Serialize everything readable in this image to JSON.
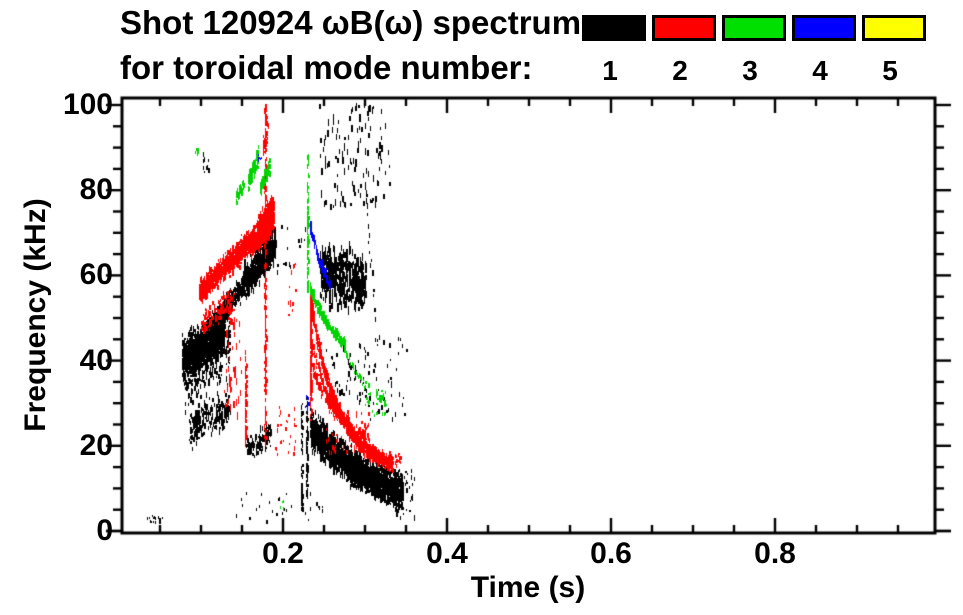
{
  "title": {
    "line1": "Shot 120924 ωB(ω) spectrum",
    "line2": "for toroidal mode number:"
  },
  "legend": {
    "entries": [
      {
        "label": "1",
        "color": "#000000"
      },
      {
        "label": "2",
        "color": "#ff0000"
      },
      {
        "label": "3",
        "color": "#00e000"
      },
      {
        "label": "4",
        "color": "#0000ff"
      },
      {
        "label": "5",
        "color": "#ffff00"
      }
    ]
  },
  "axes": {
    "x": {
      "title": "Time (s)",
      "major_ticks": [
        0.2,
        0.4,
        0.6,
        0.8
      ],
      "tick_labels": [
        "0.2",
        "0.4",
        "0.6",
        "0.8"
      ],
      "minor_step": 0.05,
      "range": [
        0.004,
        0.995
      ]
    },
    "y": {
      "title": "Frequency (kHz)",
      "major_ticks": [
        0,
        20,
        40,
        60,
        80,
        100
      ],
      "tick_labels": [
        "0",
        "20",
        "40",
        "60",
        "80",
        "100"
      ],
      "minor_step": 5,
      "range": [
        0,
        101.5
      ]
    }
  },
  "chart_data": {
    "type": "scatter",
    "title": "Shot 120924 ωB(ω) spectrum for toroidal mode number:",
    "xlabel": "Time (s)",
    "ylabel": "Frequency (kHz)",
    "xlim": [
      0,
      1.0
    ],
    "ylim": [
      0,
      100
    ],
    "grid": false,
    "legend_position": "top-right",
    "series": [
      {
        "name": "1",
        "color": "#000000",
        "bands": [
          {
            "shape": "speckles",
            "t": [
              0.033,
              0.056
            ],
            "f": [
              1.5,
              3.5
            ],
            "n": 14,
            "dash": [
              2,
              3
            ]
          },
          {
            "shape": "cloud",
            "t": [
              0.077,
              0.128
            ],
            "f": [
              40,
              47
            ],
            "w": 7,
            "n": 1500,
            "dash": [
              2,
              5
            ]
          },
          {
            "shape": "cloud",
            "t": [
              0.078,
              0.135
            ],
            "f": [
              36,
              44
            ],
            "w": 12,
            "n": 320,
            "dash": [
              2,
              6
            ]
          },
          {
            "shape": "cloud",
            "t": [
              0.085,
              0.135
            ],
            "f": [
              24,
              29
            ],
            "w": 6,
            "n": 200,
            "dash": [
              2,
              7
            ]
          },
          {
            "shape": "cloud",
            "t": [
              0.105,
              0.19
            ],
            "f": [
              47,
              66
            ],
            "w": 3.5,
            "n": 800,
            "dash": [
              2,
              6
            ]
          },
          {
            "shape": "cloud",
            "t": [
              0.15,
              0.19
            ],
            "f": [
              58,
              68
            ],
            "w": 6,
            "n": 300,
            "dash": [
              3,
              8
            ]
          },
          {
            "shape": "speckles",
            "t": [
              0.102,
              0.11
            ],
            "f": [
              84,
              89
            ],
            "n": 10,
            "dash": [
              2,
              5
            ]
          },
          {
            "shape": "speckles",
            "t": [
              0.19,
              0.23
            ],
            "f": [
              60,
              72
            ],
            "n": 16,
            "dash": [
              2,
              5
            ]
          },
          {
            "shape": "cloud",
            "t": [
              0.245,
              0.3
            ],
            "f": [
              60,
              58
            ],
            "w": 9,
            "n": 430,
            "dash": [
              4,
              10
            ]
          },
          {
            "shape": "speckles",
            "t": [
              0.243,
              0.33
            ],
            "f": [
              76,
              100
            ],
            "n": 120,
            "dash": [
              3,
              7
            ]
          },
          {
            "shape": "trail",
            "t": [
              0.292,
              0.312
            ],
            "f": [
              100,
              50
            ],
            "n": 26,
            "dash": [
              3,
              6
            ]
          },
          {
            "shape": "chirp",
            "t": [
              0.233,
              0.345
            ],
            "f": [
              24,
              9
            ],
            "w": 5.5,
            "k": 1.2,
            "n": 2200,
            "dash": [
              2,
              7
            ]
          },
          {
            "shape": "cloud",
            "t": [
              0.155,
              0.185
            ],
            "f": [
              19,
              23
            ],
            "w": 3.5,
            "n": 130,
            "dash": [
              2,
              6
            ]
          },
          {
            "shape": "speckles",
            "t": [
              0.14,
              0.25
            ],
            "f": [
              2,
              9
            ],
            "n": 28,
            "dash": [
              2,
              4
            ]
          },
          {
            "shape": "vline",
            "t": [
              0.2225,
              0.2225
            ],
            "f": [
              5,
              30
            ],
            "n": 60,
            "dash": [
              2,
              5
            ]
          },
          {
            "shape": "vline",
            "t": [
              0.229,
              0.229
            ],
            "f": [
              8,
              32
            ],
            "n": 70,
            "dash": [
              2,
              5
            ]
          },
          {
            "shape": "speckles",
            "t": [
              0.3,
              0.35
            ],
            "f": [
              26,
              46
            ],
            "n": 45,
            "dash": [
              2,
              5
            ]
          },
          {
            "shape": "speckles",
            "t": [
              0.333,
              0.36
            ],
            "f": [
              3,
              14
            ],
            "n": 40,
            "dash": [
              2,
              5
            ]
          },
          {
            "shape": "speckles",
            "t": [
              0.25,
              0.3
            ],
            "f": [
              30,
              44
            ],
            "n": 55,
            "dash": [
              2,
              6
            ]
          }
        ]
      },
      {
        "name": "2",
        "color": "#ff0000",
        "bands": [
          {
            "shape": "cloud",
            "t": [
              0.097,
              0.188
            ],
            "f": [
              56,
              73
            ],
            "w": 4,
            "n": 1200,
            "dash": [
              2,
              6
            ]
          },
          {
            "shape": "cloud",
            "t": [
              0.168,
              0.188
            ],
            "f": [
              70,
              75
            ],
            "w": 5,
            "n": 350,
            "dash": [
              3,
              7
            ]
          },
          {
            "shape": "cloud",
            "t": [
              0.1,
              0.14
            ],
            "f": [
              48,
              55
            ],
            "w": 4,
            "n": 130,
            "dash": [
              2,
              5
            ]
          },
          {
            "shape": "speckles",
            "t": [
              0.128,
              0.15
            ],
            "f": [
              24,
              50
            ],
            "n": 45,
            "dash": [
              3,
              8
            ]
          },
          {
            "shape": "vline",
            "t": [
              0.154,
              0.154
            ],
            "f": [
              20,
              42
            ],
            "n": 70,
            "dash": [
              2,
              6
            ]
          },
          {
            "shape": "vline",
            "t": [
              0.178,
              0.178
            ],
            "f": [
              20,
              100
            ],
            "n": 200,
            "dash": [
              2,
              6
            ]
          },
          {
            "shape": "cloud",
            "t": [
              0.175,
              0.182
            ],
            "f": [
              90,
              96
            ],
            "w": 4,
            "n": 40,
            "dash": [
              2,
              5
            ]
          },
          {
            "shape": "chirp",
            "t": [
              0.233,
              0.333
            ],
            "f": [
              54,
              16
            ],
            "w": 2.5,
            "k": 3.0,
            "n": 900,
            "dash": [
              2,
              6
            ]
          },
          {
            "shape": "chirp",
            "t": [
              0.233,
              0.3
            ],
            "f": [
              46,
              22
            ],
            "w": 2,
            "k": 2.5,
            "n": 260,
            "dash": [
              2,
              5
            ]
          },
          {
            "shape": "chirp",
            "t": [
              0.236,
              0.28
            ],
            "f": [
              38,
              26
            ],
            "w": 2,
            "k": 2.0,
            "n": 160,
            "dash": [
              2,
              5
            ]
          },
          {
            "shape": "vline",
            "t": [
              0.2335,
              0.2335
            ],
            "f": [
              26,
              55
            ],
            "n": 110,
            "dash": [
              2,
              6
            ]
          },
          {
            "shape": "speckles",
            "t": [
              0.19,
              0.215
            ],
            "f": [
              18,
              30
            ],
            "n": 28,
            "dash": [
              2,
              5
            ]
          },
          {
            "shape": "speckles",
            "t": [
              0.205,
              0.215
            ],
            "f": [
              50,
              63
            ],
            "n": 12,
            "dash": [
              2,
              5
            ]
          },
          {
            "shape": "speckles",
            "t": [
              0.25,
              0.31
            ],
            "f": [
              18,
              28
            ],
            "n": 60,
            "dash": [
              2,
              5
            ]
          },
          {
            "shape": "speckles",
            "t": [
              0.335,
              0.345
            ],
            "f": [
              15,
              18
            ],
            "n": 14,
            "dash": [
              2,
              4
            ]
          }
        ]
      },
      {
        "name": "3",
        "color": "#00d400",
        "bands": [
          {
            "shape": "speckles",
            "t": [
              0.092,
              0.097
            ],
            "f": [
              87,
              90
            ],
            "n": 8,
            "dash": [
              2,
              4
            ]
          },
          {
            "shape": "cloud",
            "t": [
              0.142,
              0.152
            ],
            "f": [
              78,
              81
            ],
            "w": 2.5,
            "n": 40,
            "dash": [
              3,
              6
            ]
          },
          {
            "shape": "cloud",
            "t": [
              0.157,
              0.17
            ],
            "f": [
              82,
              88
            ],
            "w": 3.5,
            "n": 70,
            "dash": [
              3,
              7
            ]
          },
          {
            "shape": "cloud",
            "t": [
              0.172,
              0.184
            ],
            "f": [
              80,
              86
            ],
            "w": 3,
            "n": 55,
            "dash": [
              3,
              7
            ]
          },
          {
            "shape": "vline",
            "t": [
              0.2295,
              0.2295
            ],
            "f": [
              56,
              88
            ],
            "n": 70,
            "dash": [
              3,
              6
            ]
          },
          {
            "shape": "chirp",
            "t": [
              0.233,
              0.275
            ],
            "f": [
              57,
              44
            ],
            "w": 1.8,
            "k": 1.5,
            "n": 180,
            "dash": [
              2,
              6
            ]
          },
          {
            "shape": "chirp",
            "t": [
              0.27,
              0.325
            ],
            "f": [
              44,
              30
            ],
            "w": 1.5,
            "k": 1.0,
            "n": 50,
            "dash": [
              2,
              5
            ]
          },
          {
            "shape": "speckles",
            "t": [
              0.3,
              0.325
            ],
            "f": [
              27,
              33
            ],
            "n": 20,
            "dash": [
              2,
              4
            ]
          },
          {
            "shape": "speckles",
            "t": [
              0.196,
              0.201
            ],
            "f": [
              5,
              8
            ],
            "n": 5,
            "dash": [
              2,
              3
            ]
          }
        ]
      },
      {
        "name": "4",
        "color": "#0000ff",
        "bands": [
          {
            "shape": "chirp",
            "t": [
              0.232,
              0.256
            ],
            "f": [
              72,
              58
            ],
            "w": 1.5,
            "k": 1.0,
            "n": 60,
            "dash": [
              4,
              8
            ]
          },
          {
            "shape": "speckles",
            "t": [
              0.169,
              0.174
            ],
            "f": [
              86,
              89
            ],
            "n": 5,
            "dash": [
              2,
              4
            ]
          },
          {
            "shape": "speckles",
            "t": [
              0.227,
              0.231
            ],
            "f": [
              28,
              32
            ],
            "n": 8,
            "dash": [
              2,
              4
            ]
          }
        ]
      },
      {
        "name": "5",
        "color": "#ffff00",
        "bands": []
      }
    ]
  }
}
